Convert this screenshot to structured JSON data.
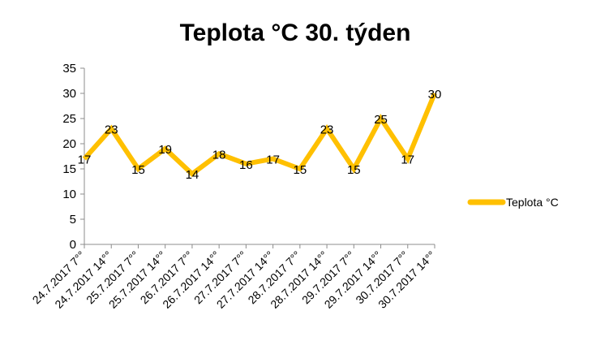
{
  "chart_data": {
    "type": "line",
    "title": "Teplota °C 30. týden",
    "categories": [
      "24.7.2017 7°°",
      "24.7.2017 14°°",
      "25.7.2017 7°°",
      "25.7.2017 14°°",
      "26.7.2017 7°°",
      "26.7.2017 14°°",
      "27.7.2017 7°°",
      "27.7.2017 14°°",
      "28.7.2017 7°°",
      "28.7.2017 14°°",
      "29.7.2017 7°°",
      "29.7.2017 14°°",
      "30.7.2017 7°°",
      "30.7.2017 14°°"
    ],
    "series": [
      {
        "name": "Teplota °C",
        "values": [
          17,
          23,
          15,
          19,
          14,
          18,
          16,
          17,
          15,
          23,
          15,
          25,
          17,
          30
        ],
        "color": "#FFC000"
      }
    ],
    "ylim": [
      0,
      35
    ],
    "yticks": [
      "0",
      "5",
      "10",
      "15",
      "20",
      "25",
      "30",
      "35"
    ],
    "legend": "right",
    "grid": false,
    "data_labels": true
  }
}
